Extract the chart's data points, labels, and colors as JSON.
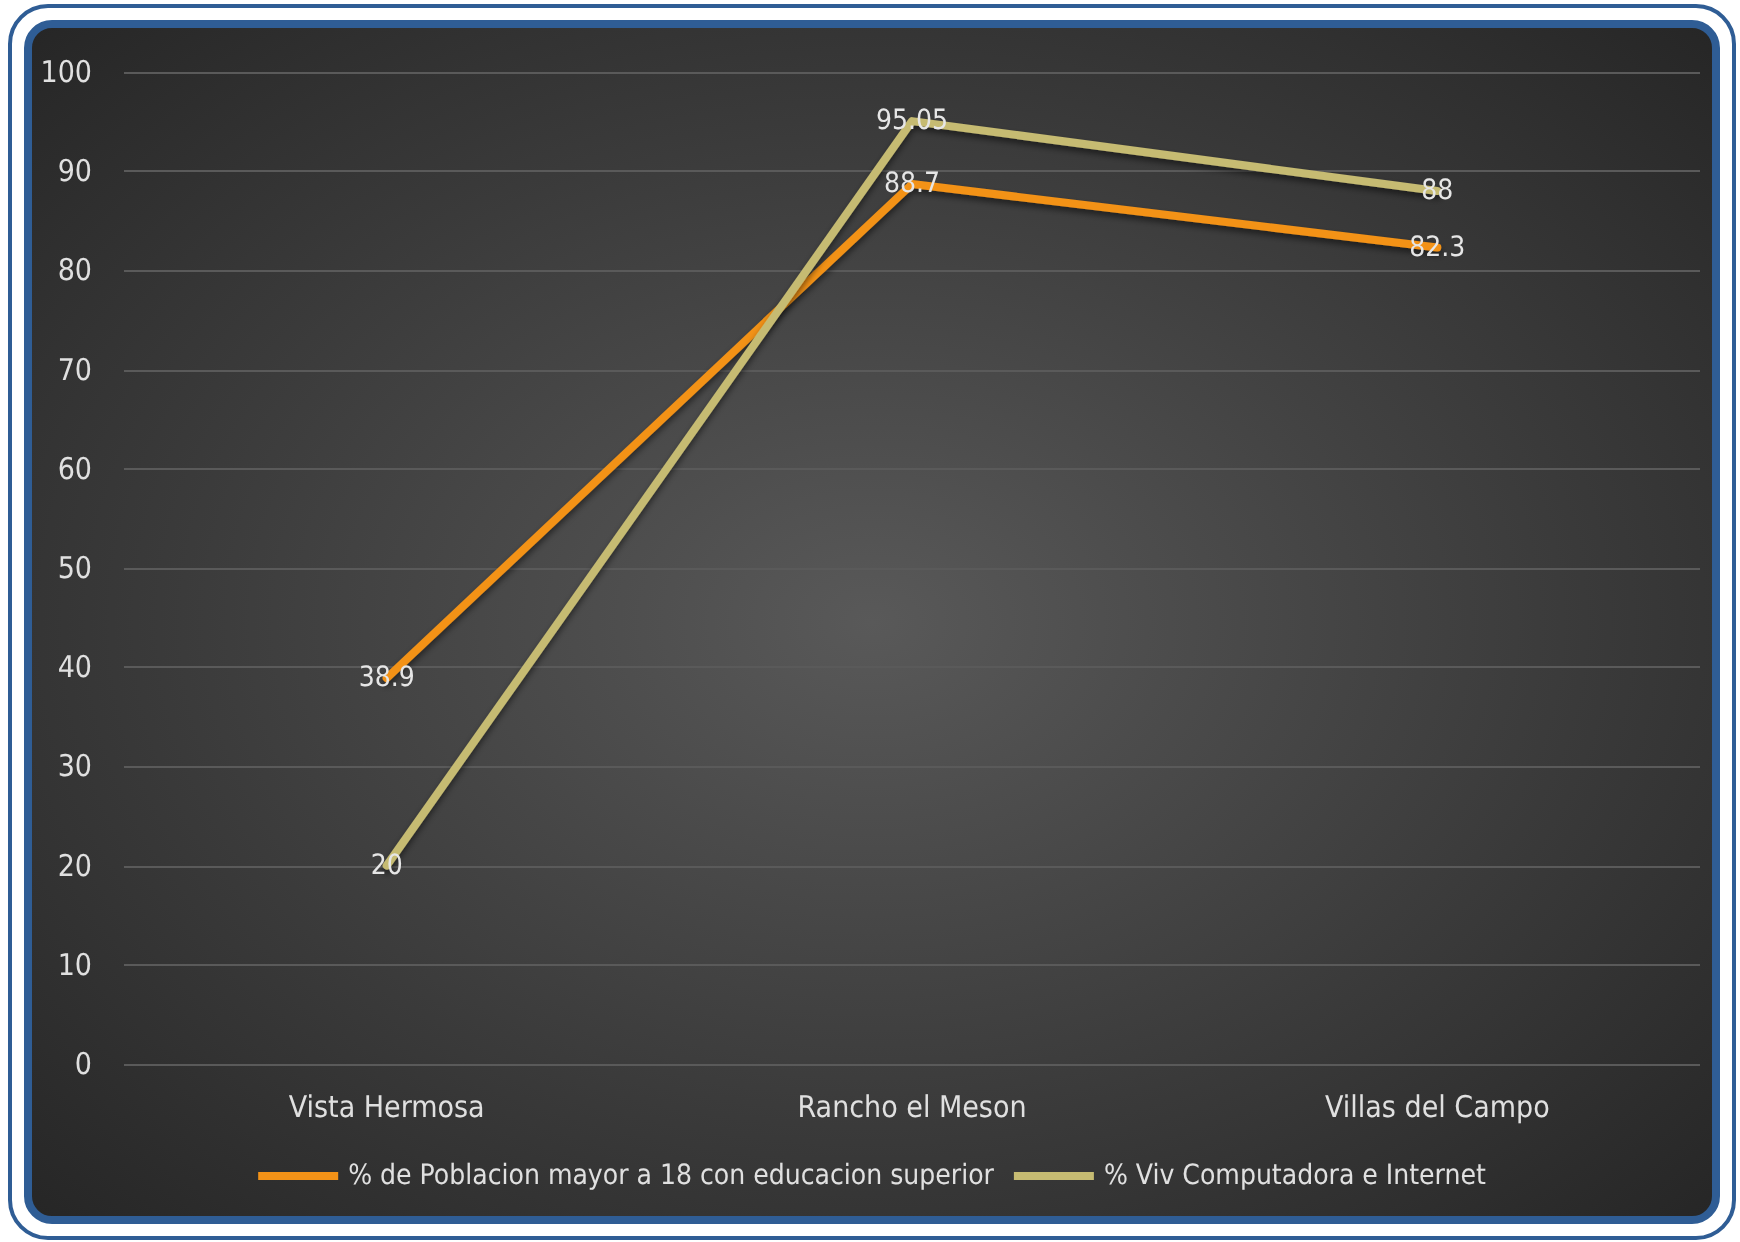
{
  "chart_data": {
    "type": "line",
    "categories": [
      "Vista Hermosa",
      "Rancho el Meson",
      "Villas del Campo"
    ],
    "series": [
      {
        "name": "% de Poblacion mayor a 18 con educacion superior",
        "color": "#f39217",
        "values": [
          38.9,
          88.7,
          82.3
        ]
      },
      {
        "name": "% Viv Computadora e Internet",
        "color": "#c6bb72",
        "values": [
          20,
          95.05,
          88
        ]
      }
    ],
    "ylim": [
      0,
      100
    ],
    "yticks": [
      0,
      10,
      20,
      30,
      40,
      50,
      60,
      70,
      80,
      90,
      100
    ],
    "grid": "y",
    "legend": "bottom",
    "marker": "none",
    "line_style": "solid",
    "data_labels": true
  }
}
